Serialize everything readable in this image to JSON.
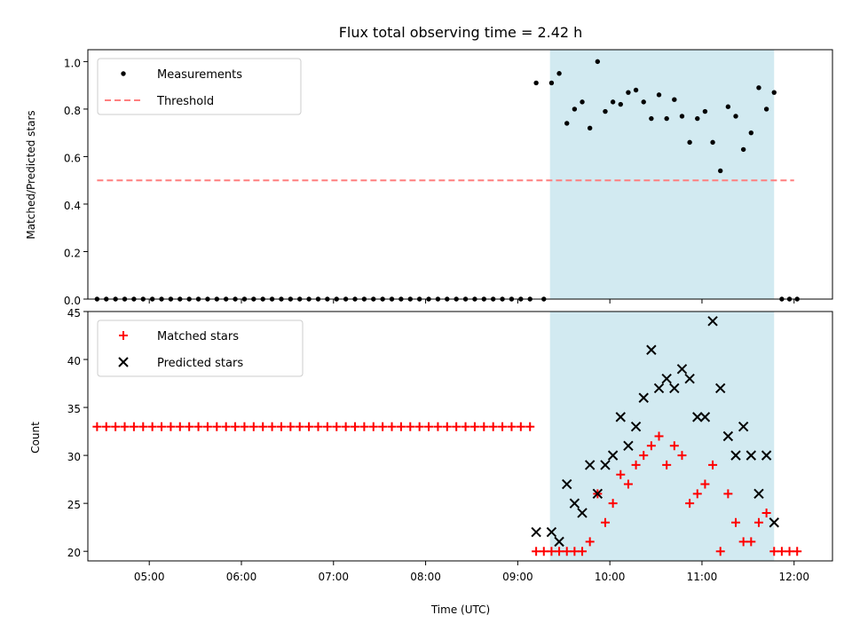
{
  "chart_data": [
    {
      "type": "scatter",
      "title": "Flux total observing time = 2.42 h",
      "xlabel": "",
      "ylabel": "Matched/Predicted stars",
      "xlim": [
        "04:20",
        "12:25"
      ],
      "ylim": [
        0,
        1.05
      ],
      "y_ticks": [
        "0.0",
        "0.2",
        "0.4",
        "0.6",
        "0.8",
        "1.0"
      ],
      "shaded_region": {
        "x_start": "09:21",
        "x_end": "11:47",
        "color": "#add8e6"
      },
      "legend": {
        "placement": "upper-left",
        "entries": [
          "Measurements",
          "Threshold"
        ]
      },
      "series": [
        {
          "name": "Measurements",
          "marker": "dot",
          "color": "#000000",
          "x": [
            "04:26",
            "04:32",
            "04:38",
            "04:44",
            "04:50",
            "04:56",
            "05:02",
            "05:08",
            "05:14",
            "05:20",
            "05:26",
            "05:32",
            "05:38",
            "05:44",
            "05:50",
            "05:56",
            "06:02",
            "06:08",
            "06:14",
            "06:20",
            "06:26",
            "06:32",
            "06:38",
            "06:44",
            "06:50",
            "06:56",
            "07:02",
            "07:08",
            "07:14",
            "07:20",
            "07:26",
            "07:32",
            "07:38",
            "07:44",
            "07:50",
            "07:56",
            "08:02",
            "08:08",
            "08:14",
            "08:20",
            "08:26",
            "08:32",
            "08:38",
            "08:44",
            "08:50",
            "08:56",
            "09:02",
            "09:08",
            "09:12",
            "09:17",
            "09:22",
            "09:27",
            "09:32",
            "09:37",
            "09:42",
            "09:47",
            "09:52",
            "09:57",
            "10:02",
            "10:07",
            "10:12",
            "10:17",
            "10:22",
            "10:27",
            "10:32",
            "10:37",
            "10:42",
            "10:47",
            "10:52",
            "10:57",
            "11:02",
            "11:07",
            "11:12",
            "11:17",
            "11:22",
            "11:27",
            "11:32",
            "11:37",
            "11:42",
            "11:47",
            "11:52",
            "11:57",
            "12:02"
          ],
          "y": [
            0,
            0,
            0,
            0,
            0,
            0,
            0,
            0,
            0,
            0,
            0,
            0,
            0,
            0,
            0,
            0,
            0,
            0,
            0,
            0,
            0,
            0,
            0,
            0,
            0,
            0,
            0,
            0,
            0,
            0,
            0,
            0,
            0,
            0,
            0,
            0,
            0,
            0,
            0,
            0,
            0,
            0,
            0,
            0,
            0,
            0,
            0,
            0,
            0.91,
            0,
            0.91,
            0.95,
            0.74,
            0.8,
            0.83,
            0.72,
            1.0,
            0.79,
            0.83,
            0.82,
            0.87,
            0.88,
            0.83,
            0.76,
            0.86,
            0.76,
            0.84,
            0.77,
            0.66,
            0.76,
            0.79,
            0.66,
            0.54,
            0.81,
            0.77,
            0.63,
            0.7,
            0.89,
            0.8,
            0.87,
            0,
            0,
            0
          ]
        },
        {
          "name": "Threshold",
          "style": "dashed",
          "color": "#ff7f7f",
          "x": [
            "04:26",
            "12:00"
          ],
          "y": [
            0.5,
            0.5
          ]
        }
      ]
    },
    {
      "type": "scatter",
      "title": "",
      "xlabel": "Time (UTC)",
      "ylabel": "Count",
      "xlim": [
        "04:20",
        "12:25"
      ],
      "ylim": [
        19,
        45
      ],
      "x_ticks": [
        "05:00",
        "06:00",
        "07:00",
        "08:00",
        "09:00",
        "10:00",
        "11:00",
        "12:00"
      ],
      "y_ticks": [
        "20",
        "25",
        "30",
        "35",
        "40",
        "45"
      ],
      "shaded_region": {
        "x_start": "09:21",
        "x_end": "11:47",
        "color": "#add8e6"
      },
      "legend": {
        "placement": "upper-left",
        "entries": [
          "Matched stars",
          "Predicted stars"
        ]
      },
      "series": [
        {
          "name": "Matched stars",
          "marker": "plus",
          "color": "#ff0000",
          "x": [
            "04:26",
            "04:32",
            "04:38",
            "04:44",
            "04:50",
            "04:56",
            "05:02",
            "05:08",
            "05:14",
            "05:20",
            "05:26",
            "05:32",
            "05:38",
            "05:44",
            "05:50",
            "05:56",
            "06:02",
            "06:08",
            "06:14",
            "06:20",
            "06:26",
            "06:32",
            "06:38",
            "06:44",
            "06:50",
            "06:56",
            "07:02",
            "07:08",
            "07:14",
            "07:20",
            "07:26",
            "07:32",
            "07:38",
            "07:44",
            "07:50",
            "07:56",
            "08:02",
            "08:08",
            "08:14",
            "08:20",
            "08:26",
            "08:32",
            "08:38",
            "08:44",
            "08:50",
            "08:56",
            "09:02",
            "09:08",
            "09:12",
            "09:17",
            "09:22",
            "09:27",
            "09:32",
            "09:37",
            "09:42",
            "09:47",
            "09:52",
            "09:57",
            "10:02",
            "10:07",
            "10:12",
            "10:17",
            "10:22",
            "10:27",
            "10:32",
            "10:37",
            "10:42",
            "10:47",
            "10:52",
            "10:57",
            "11:02",
            "11:07",
            "11:12",
            "11:17",
            "11:22",
            "11:27",
            "11:32",
            "11:37",
            "11:42",
            "11:47",
            "11:52",
            "11:57",
            "12:02"
          ],
          "y": [
            33,
            33,
            33,
            33,
            33,
            33,
            33,
            33,
            33,
            33,
            33,
            33,
            33,
            33,
            33,
            33,
            33,
            33,
            33,
            33,
            33,
            33,
            33,
            33,
            33,
            33,
            33,
            33,
            33,
            33,
            33,
            33,
            33,
            33,
            33,
            33,
            33,
            33,
            33,
            33,
            33,
            33,
            33,
            33,
            33,
            33,
            33,
            33,
            20,
            20,
            20,
            20,
            20,
            20,
            20,
            21,
            26,
            23,
            25,
            28,
            27,
            29,
            30,
            31,
            32,
            29,
            31,
            30,
            25,
            26,
            27,
            29,
            20,
            26,
            23,
            21,
            21,
            23,
            24,
            20,
            20,
            20,
            20
          ]
        },
        {
          "name": "Predicted stars",
          "marker": "x",
          "color": "#000000",
          "x": [
            "09:12",
            "09:22",
            "09:27",
            "09:32",
            "09:37",
            "09:42",
            "09:47",
            "09:52",
            "09:57",
            "10:02",
            "10:07",
            "10:12",
            "10:17",
            "10:22",
            "10:27",
            "10:32",
            "10:37",
            "10:42",
            "10:47",
            "10:52",
            "10:57",
            "11:02",
            "11:07",
            "11:12",
            "11:17",
            "11:22",
            "11:27",
            "11:32",
            "11:37",
            "11:42",
            "11:47"
          ],
          "y": [
            22,
            22,
            21,
            27,
            25,
            24,
            29,
            26,
            29,
            30,
            34,
            31,
            33,
            36,
            41,
            37,
            38,
            37,
            39,
            38,
            34,
            34,
            44,
            37,
            32,
            30,
            33,
            30,
            26,
            30,
            23
          ]
        }
      ]
    }
  ]
}
